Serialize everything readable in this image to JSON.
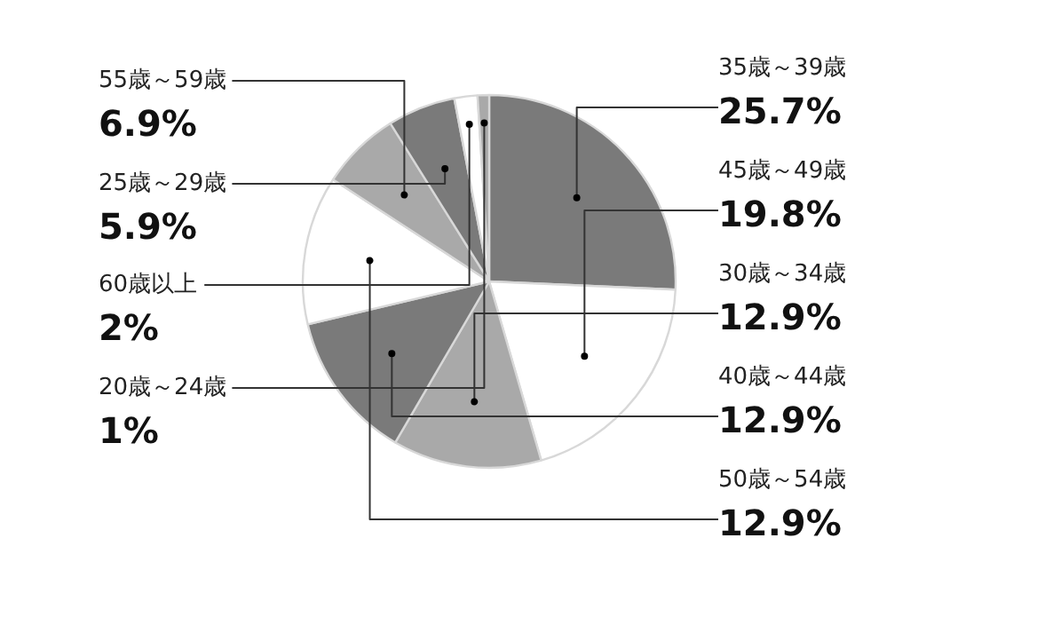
{
  "chart_data": {
    "type": "pie",
    "categories": [
      "35歳～39歳",
      "45歳～49歳",
      "30歳～34歳",
      "40歳～44歳",
      "50歳～54歳",
      "55歳～59歳",
      "25歳～29歳",
      "60歳以上",
      "20歳～24歳"
    ],
    "values": [
      25.7,
      19.8,
      12.9,
      12.9,
      12.9,
      6.9,
      5.9,
      2,
      1
    ],
    "value_labels": [
      "25.7%",
      "19.8%",
      "12.9%",
      "12.9%",
      "12.9%",
      "6.9%",
      "5.9%",
      "2%",
      "1%"
    ],
    "colors": [
      "#7a7a7a",
      "#ffffff",
      "#a9a9a9",
      "#7a7a7a",
      "#ffffff",
      "#a9a9a9",
      "#7a7a7a",
      "#ffffff",
      "#a9a9a9"
    ]
  }
}
